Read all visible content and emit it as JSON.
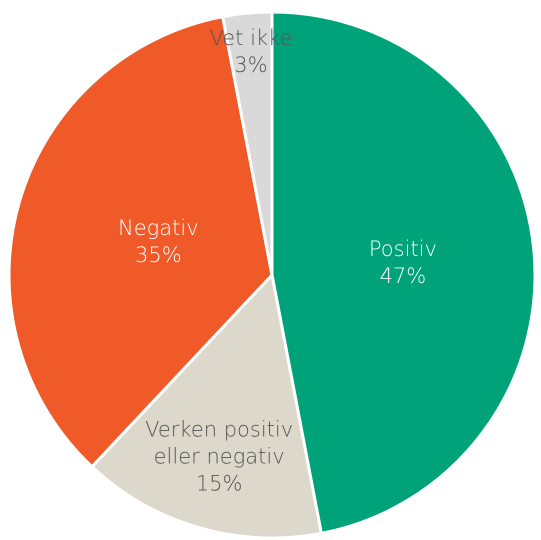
{
  "chart_data": {
    "type": "pie",
    "categories": [
      "Positiv",
      "Verken positiv eller negativ",
      "Negativ",
      "Vet ikke"
    ],
    "values": [
      47,
      15,
      35,
      3
    ],
    "value_labels": [
      "47%",
      "15%",
      "35%",
      "3%"
    ],
    "colors": [
      "#00a27a",
      "#dcd8cb",
      "#f05a28",
      "#d9d9d9"
    ]
  }
}
